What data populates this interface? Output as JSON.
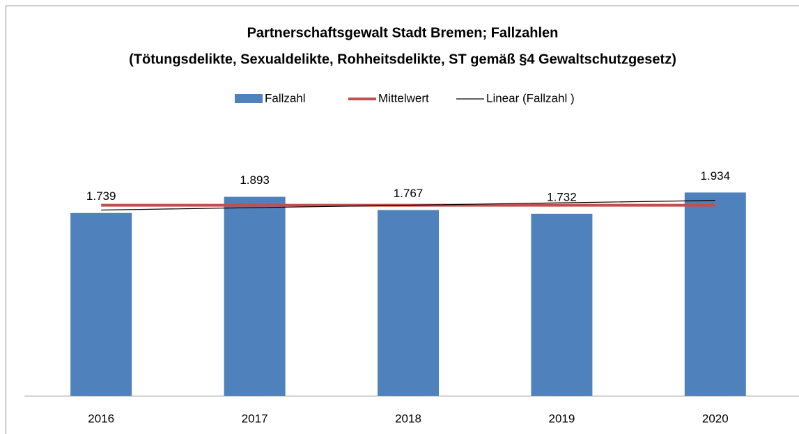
{
  "chart_data": {
    "type": "bar",
    "title": [
      "Partnerschaftsgewalt Stadt Bremen; Fallzahlen",
      "(Tötungsdelikte, Sexualdelikte, Rohheitsdelikte, ST gemäß §4 Gewaltschutzgesetz)"
    ],
    "categories": [
      "2016",
      "2017",
      "2018",
      "2019",
      "2020"
    ],
    "ylim": [
      0,
      2500
    ],
    "legend": "top",
    "series": [
      {
        "name": "Fallzahl",
        "kind": "bar",
        "color": "#4f81bd",
        "values": [
          1739,
          1893,
          1767,
          1732,
          1934
        ],
        "value_labels": [
          "1.739",
          "1.893",
          "1.767",
          "1.732",
          "1.934"
        ]
      },
      {
        "name": "Mittelwert",
        "kind": "line",
        "color": "#c0504d",
        "values": [
          1813,
          1813,
          1813,
          1813,
          1813
        ]
      },
      {
        "name": "Linear (Fallzahl )",
        "kind": "trend",
        "color": "#000000",
        "values": [
          1767.2,
          1790.1,
          1813,
          1835.9,
          1858.8
        ]
      }
    ]
  }
}
